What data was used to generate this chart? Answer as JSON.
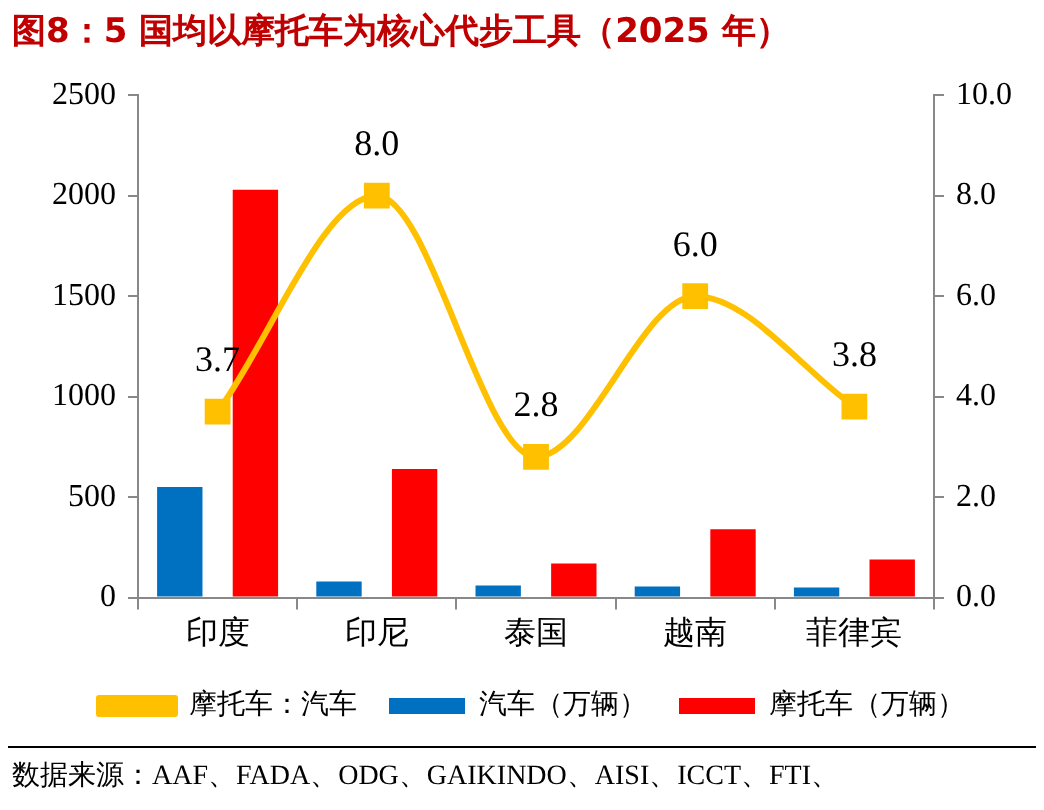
{
  "chart_data": {
    "type": "bar",
    "title": "图8：5 国均以摩托车为核心代步工具（2025 年）",
    "categories": [
      "印度",
      "印尼",
      "泰国",
      "越南",
      "菲律宾"
    ],
    "series": [
      {
        "name": "汽车（万辆）",
        "color": "#0070c0",
        "values": [
          550,
          80,
          60,
          55,
          50
        ]
      },
      {
        "name": "摩托车（万辆）",
        "color": "#ff0000",
        "values": [
          2030,
          640,
          170,
          340,
          190
        ]
      },
      {
        "name": "摩托车：汽车",
        "type": "line",
        "axis": "y2",
        "color": "#ffc000",
        "values": [
          3.7,
          8.0,
          2.8,
          6.0,
          3.8
        ],
        "value_labels": [
          "3.7",
          "8.0",
          "2.8",
          "6.0",
          "3.8"
        ]
      }
    ],
    "ylim": [
      0,
      2500
    ],
    "yticks": [
      0,
      500,
      1000,
      1500,
      2000,
      2500
    ],
    "y2lim": [
      0,
      10
    ],
    "y2ticks": [
      {
        "value": 0,
        "label": "0.0"
      },
      {
        "value": 2,
        "label": "2.0"
      },
      {
        "value": 4,
        "label": "4.0"
      },
      {
        "value": 6,
        "label": "6.0"
      },
      {
        "value": 8,
        "label": "8.0"
      },
      {
        "value": 10,
        "label": "10.0"
      }
    ],
    "grid": false,
    "legend": "bottom",
    "marker": "square",
    "annotations": [
      "数据来源：AAF、FADA、ODG、GAIKINDO、AISI、ICCT、FTI、"
    ]
  }
}
